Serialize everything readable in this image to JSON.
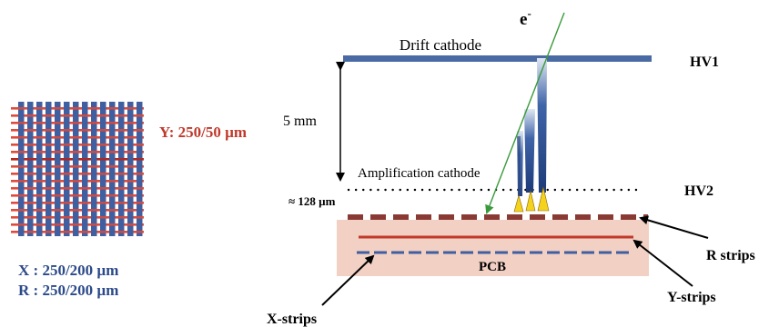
{
  "labels": {
    "electron": "e",
    "electron_superscript": "-",
    "drift_cathode": "Drift cathode",
    "hv1": "HV1",
    "gap": "5 mm",
    "amplification_cathode": "Amplification cathode",
    "hv2": "HV2",
    "amplification_gap": "≈ 128 µm",
    "pcb": "PCB",
    "r_strips": "R strips",
    "y_strips": "Y-strips",
    "x_strips": "X-strips"
  },
  "strip_pitch": {
    "y": "Y: 250/50 µm",
    "x": "X : 250/200 µm",
    "r": "R : 250/200 µm"
  },
  "colors": {
    "blue_strip": "#3f5fa0",
    "red_strip": "#e04a3a",
    "dark_red": "#8a3a34",
    "pcb_fill": "#f2d0c4",
    "drift_bar": "#4a6aa4",
    "track": "#3a9a3a",
    "avalanche": "#f5d21c",
    "y_label": "#c0392b",
    "xr_label": "#2c4a8a"
  }
}
